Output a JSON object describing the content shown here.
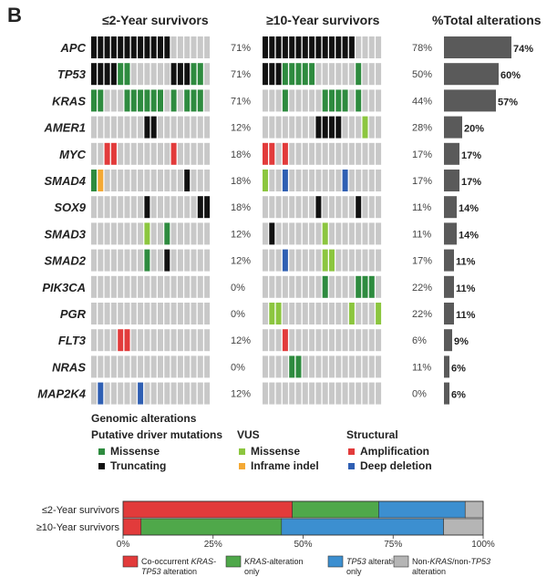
{
  "panel_label": "B",
  "headers": {
    "short": "≤2-Year survivors",
    "long": "≥10-Year survivors",
    "total": "%Total alterations"
  },
  "colors": {
    "empty": "#c8c8c8",
    "truncating": "#111111",
    "missense_driver": "#2e8b3f",
    "missense_vus": "#8cc63f",
    "inframe_indel": "#f4a935",
    "amplification": "#e23b3b",
    "deep_deletion": "#2f5fb3",
    "bar": "#5a5a5a",
    "stack_cooccur": "#e23b3b",
    "stack_kras": "#4fa84a",
    "stack_tp53": "#3c8fd0",
    "stack_other": "#b5b5b5"
  },
  "chart_data": [
    {
      "type": "heatmap",
      "title": "Genomic alterations oncoprint",
      "groups": [
        "≤2-Year survivors",
        "≥10-Year survivors"
      ],
      "genes": [
        {
          "name": "APC",
          "short_pct": "71%",
          "long_pct": "78%",
          "total_label": "74%",
          "total": 74,
          "short_cells": [
            "T",
            "T",
            "T",
            "T",
            "T",
            "T",
            "T",
            "T",
            "T",
            "T",
            "T",
            "T",
            "",
            "",
            "",
            "",
            "",
            ""
          ],
          "long_cells": [
            "T",
            "T",
            "T",
            "T",
            "T",
            "T",
            "T",
            "T",
            "T",
            "T",
            "T",
            "T",
            "T",
            "T",
            "",
            "",
            "",
            ""
          ]
        },
        {
          "name": "TP53",
          "short_pct": "71%",
          "long_pct": "50%",
          "total_label": "60%",
          "total": 60,
          "short_cells": [
            "T",
            "T",
            "T",
            "T",
            "M",
            "M",
            "",
            "",
            "",
            "",
            "",
            "",
            "T",
            "T",
            "T",
            "M",
            "M",
            ""
          ],
          "long_cells": [
            "T",
            "T",
            "T",
            "M",
            "M",
            "M",
            "M",
            "M",
            "",
            "",
            "",
            "",
            "",
            "",
            "M",
            "",
            "",
            ""
          ]
        },
        {
          "name": "KRAS",
          "short_pct": "71%",
          "long_pct": "44%",
          "total_label": "57%",
          "total": 57,
          "short_cells": [
            "M",
            "M",
            "",
            "",
            "",
            "M",
            "M",
            "M",
            "M",
            "M",
            "M",
            "",
            "M",
            "",
            "M",
            "M",
            "M",
            ""
          ],
          "long_cells": [
            "",
            "",
            "",
            "M",
            "",
            "",
            "",
            "",
            "",
            "M",
            "M",
            "M",
            "M",
            "",
            "M",
            "",
            "",
            ""
          ]
        },
        {
          "name": "AMER1",
          "short_pct": "12%",
          "long_pct": "28%",
          "total_label": "20%",
          "total": 20,
          "short_cells": [
            "",
            "",
            "",
            "",
            "",
            "",
            "",
            "",
            "T",
            "T",
            "",
            "",
            "",
            "",
            "",
            "",
            "",
            ""
          ],
          "long_cells": [
            "",
            "",
            "",
            "",
            "",
            "",
            "",
            "",
            "T",
            "T",
            "T",
            "T",
            "",
            "",
            "",
            "V",
            "",
            ""
          ]
        },
        {
          "name": "MYC",
          "short_pct": "18%",
          "long_pct": "17%",
          "total_label": "17%",
          "total": 17,
          "short_cells": [
            "",
            "",
            "A",
            "A",
            "",
            "",
            "",
            "",
            "",
            "",
            "",
            "",
            "A",
            "",
            "",
            "",
            "",
            ""
          ],
          "long_cells": [
            "A",
            "A",
            "",
            "A",
            "",
            "",
            "",
            "",
            "",
            "",
            "",
            "",
            "",
            "",
            "",
            "",
            "",
            ""
          ]
        },
        {
          "name": "SMAD4",
          "short_pct": "18%",
          "long_pct": "17%",
          "total_label": "17%",
          "total": 17,
          "short_cells": [
            "M",
            "I",
            "",
            "",
            "",
            "",
            "",
            "",
            "",
            "",
            "",
            "",
            "",
            "",
            "T",
            "",
            "",
            ""
          ],
          "long_cells": [
            "V",
            "",
            "",
            "D",
            "",
            "",
            "",
            "",
            "",
            "",
            "",
            "",
            "D",
            "",
            "",
            "",
            "",
            ""
          ]
        },
        {
          "name": "SOX9",
          "short_pct": "18%",
          "long_pct": "11%",
          "total_label": "14%",
          "total": 14,
          "short_cells": [
            "",
            "",
            "",
            "",
            "",
            "",
            "",
            "",
            "T",
            "",
            "",
            "",
            "",
            "",
            "",
            "",
            "T",
            "T"
          ],
          "long_cells": [
            "",
            "",
            "",
            "",
            "",
            "",
            "",
            "",
            "T",
            "",
            "",
            "",
            "",
            "",
            "T",
            "",
            "",
            ""
          ]
        },
        {
          "name": "SMAD3",
          "short_pct": "12%",
          "long_pct": "11%",
          "total_label": "14%",
          "total": 14,
          "short_cells": [
            "",
            "",
            "",
            "",
            "",
            "",
            "",
            "",
            "V",
            "",
            "",
            "M",
            "",
            "",
            "",
            "",
            "",
            ""
          ],
          "long_cells": [
            "",
            "T",
            "",
            "",
            "",
            "",
            "",
            "",
            "",
            "V",
            "",
            "",
            "",
            "",
            "",
            "",
            "",
            ""
          ]
        },
        {
          "name": "SMAD2",
          "short_pct": "12%",
          "long_pct": "17%",
          "total_label": "11%",
          "total": 11,
          "short_cells": [
            "",
            "",
            "",
            "",
            "",
            "",
            "",
            "",
            "M",
            "",
            "",
            "T",
            "",
            "",
            "",
            "",
            "",
            ""
          ],
          "long_cells": [
            "",
            "",
            "",
            "D",
            "",
            "",
            "",
            "",
            "",
            "V",
            "V",
            "",
            "",
            "",
            "",
            "",
            "",
            ""
          ]
        },
        {
          "name": "PIK3CA",
          "short_pct": "0%",
          "long_pct": "22%",
          "total_label": "11%",
          "total": 11,
          "short_cells": [
            "",
            "",
            "",
            "",
            "",
            "",
            "",
            "",
            "",
            "",
            "",
            "",
            "",
            "",
            "",
            "",
            "",
            ""
          ],
          "long_cells": [
            "",
            "",
            "",
            "",
            "",
            "",
            "",
            "",
            "",
            "M",
            "",
            "",
            "",
            "",
            "M",
            "M",
            "M",
            ""
          ]
        },
        {
          "name": "PGR",
          "short_pct": "0%",
          "long_pct": "22%",
          "total_label": "11%",
          "total": 11,
          "short_cells": [
            "",
            "",
            "",
            "",
            "",
            "",
            "",
            "",
            "",
            "",
            "",
            "",
            "",
            "",
            "",
            "",
            "",
            ""
          ],
          "long_cells": [
            "",
            "V",
            "V",
            "",
            "",
            "",
            "",
            "",
            "",
            "",
            "",
            "",
            "",
            "V",
            "",
            "",
            "",
            "V"
          ]
        },
        {
          "name": "FLT3",
          "short_pct": "12%",
          "long_pct": "6%",
          "total_label": "9%",
          "total": 9,
          "short_cells": [
            "",
            "",
            "",
            "",
            "A",
            "A",
            "",
            "",
            "",
            "",
            "",
            "",
            "",
            "",
            "",
            "",
            "",
            ""
          ],
          "long_cells": [
            "",
            "",
            "",
            "A",
            "",
            "",
            "",
            "",
            "",
            "",
            "",
            "",
            "",
            "",
            "",
            "",
            "",
            ""
          ]
        },
        {
          "name": "NRAS",
          "short_pct": "0%",
          "long_pct": "11%",
          "total_label": "6%",
          "total": 6,
          "short_cells": [
            "",
            "",
            "",
            "",
            "",
            "",
            "",
            "",
            "",
            "",
            "",
            "",
            "",
            "",
            "",
            "",
            "",
            ""
          ],
          "long_cells": [
            "",
            "",
            "",
            "",
            "M",
            "M",
            "",
            "",
            "",
            "",
            "",
            "",
            "",
            "",
            "",
            "",
            "",
            ""
          ]
        },
        {
          "name": "MAP2K4",
          "short_pct": "12%",
          "long_pct": "0%",
          "total_label": "6%",
          "total": 6,
          "short_cells": [
            "",
            "D",
            "",
            "",
            "",
            "",
            "",
            "D",
            "",
            "",
            "",
            "",
            "",
            "",
            "",
            "",
            "",
            ""
          ],
          "long_cells": [
            "",
            "",
            "",
            "",
            "",
            "",
            "",
            "",
            "",
            "",
            "",
            "",
            "",
            "",
            "",
            "",
            "",
            ""
          ]
        }
      ]
    },
    {
      "type": "bar",
      "title": "%Total alterations",
      "categories": [
        "APC",
        "TP53",
        "KRAS",
        "AMER1",
        "MYC",
        "SMAD4",
        "SOX9",
        "SMAD3",
        "SMAD2",
        "PIK3CA",
        "PGR",
        "FLT3",
        "NRAS",
        "MAP2K4"
      ],
      "values": [
        74,
        60,
        57,
        20,
        17,
        17,
        14,
        14,
        11,
        11,
        11,
        9,
        6,
        6
      ],
      "xlim": [
        0,
        80
      ]
    },
    {
      "type": "bar",
      "stacked": true,
      "orientation": "horizontal",
      "categories": [
        "≤2-Year survivors",
        "≥10-Year survivors"
      ],
      "series": [
        {
          "name": "Co-occurrent KRAS-TP53 alteration",
          "values": [
            47,
            5
          ]
        },
        {
          "name": "KRAS-alteration only",
          "values": [
            24,
            39
          ]
        },
        {
          "name": "TP53 alteration only",
          "values": [
            24,
            45
          ]
        },
        {
          "name": "Non-KRAS/non-TP53 alteration",
          "values": [
            5,
            11
          ]
        }
      ],
      "xlim": [
        0,
        100
      ],
      "ticks": [
        "0%",
        "25%",
        "50%",
        "75%",
        "100%"
      ]
    }
  ],
  "legend": {
    "title": "Genomic alterations",
    "driver_title": "Putative driver mutations",
    "missense": "Missense",
    "truncating": "Truncating",
    "vus_title": "VUS",
    "vus_missense": "Missense",
    "inframe": "Inframe indel",
    "structural_title": "Structural",
    "amplification": "Amplification",
    "deep_deletion": "Deep deletion"
  },
  "stack_legend": [
    {
      "line1_a": "Co-occurrent ",
      "line1_i": "KRAS-",
      "line2_i": "TP53",
      "line2_a": " alteration"
    },
    {
      "line1_a": "",
      "line1_i": "KRAS",
      "line1_b": "-alteration",
      "line2_a": "only"
    },
    {
      "line1_a": "",
      "line1_i": "TP53",
      "line1_b": " alteration",
      "line2_a": "only"
    },
    {
      "line1_a": "Non-",
      "line1_i": "KRAS",
      "line1_b": "/non-",
      "line1_i2": "TP53",
      "line2_a": "alteration"
    }
  ]
}
